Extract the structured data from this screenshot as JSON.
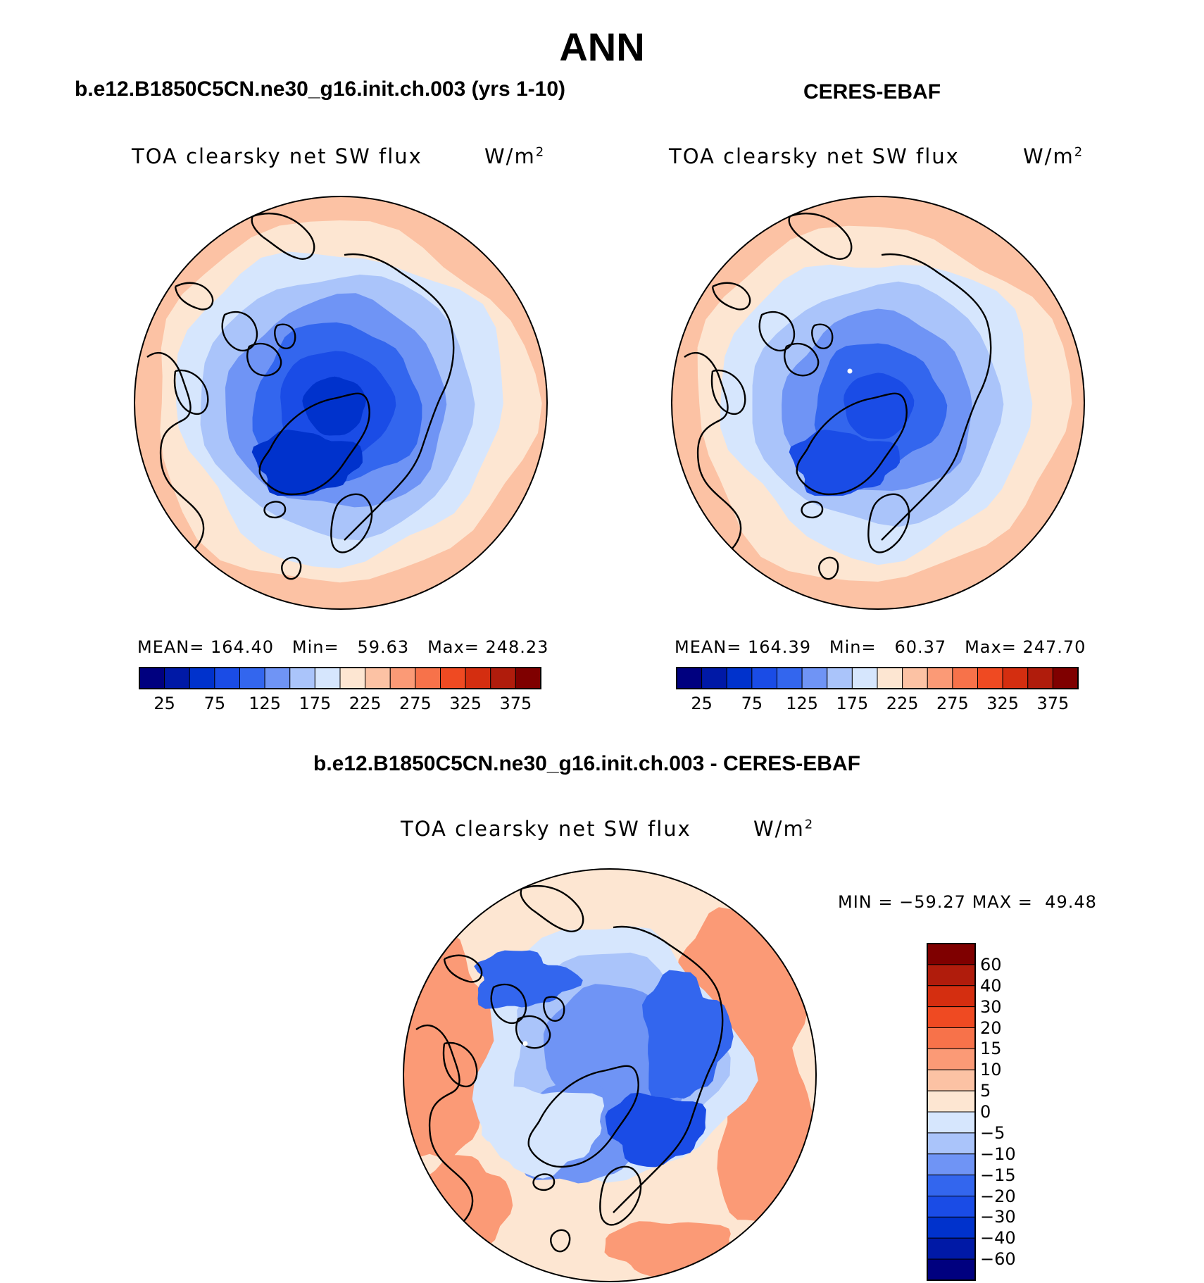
{
  "figure": {
    "season": "ANN",
    "variable": "TOA clearsky net SW flux",
    "units": "W/m",
    "units_exp": "2"
  },
  "panels": {
    "model": {
      "title": "b.e12.B1850C5CN.ne30_g16.init.ch.003 (yrs 1-10)",
      "mean_label": "MEAN=",
      "mean": "164.40",
      "min_label": "Min=",
      "min": "59.63",
      "max_label": "Max=",
      "max": "248.23"
    },
    "obs": {
      "title": "CERES-EBAF",
      "mean_label": "MEAN=",
      "mean": "164.39",
      "min_label": "Min=",
      "min": "60.37",
      "max_label": "Max=",
      "max": "247.70"
    },
    "diff": {
      "title": "b.e12.B1850C5CN.ne30_g16.init.ch.003 - CERES-EBAF",
      "min_label": "MIN =",
      "min": "−59.27",
      "max_label": "MAX =",
      "max": "49.48"
    }
  },
  "colorbars": {
    "abs": {
      "tick_labels": [
        "25",
        "75",
        "125",
        "175",
        "225",
        "275",
        "325",
        "375"
      ],
      "colors": [
        "#00007f",
        "#0019a6",
        "#0032cc",
        "#1a4ce6",
        "#3366ee",
        "#6f94f5",
        "#aac4fa",
        "#d6e6fd",
        "#fde6d2",
        "#fcc2a4",
        "#fb9a76",
        "#f7724a",
        "#ef4a22",
        "#d42e10",
        "#b01c0c",
        "#7f0000"
      ]
    },
    "diff": {
      "tick_labels": [
        "60",
        "40",
        "30",
        "20",
        "15",
        "10",
        "5",
        "0",
        "−5",
        "−10",
        "−15",
        "−20",
        "−30",
        "−40",
        "−60"
      ],
      "colors": [
        "#7f0000",
        "#b01c0c",
        "#d42e10",
        "#ef4a22",
        "#f7724a",
        "#fb9a76",
        "#fcc2a4",
        "#fde6d2",
        "#d6e6fd",
        "#aac4fa",
        "#6f94f5",
        "#3366ee",
        "#1a4ce6",
        "#0032cc",
        "#0019a6",
        "#00007f"
      ]
    }
  },
  "map_fields": {
    "model": [
      "#fcc2a4",
      "#fde6d2",
      "#d6e6fd",
      "#aac4fa",
      "#6f94f5",
      "#3366ee",
      "#1a4ce6",
      "#0032cc"
    ],
    "obs": [
      "#fcc2a4",
      "#fde6d2",
      "#d6e6fd",
      "#aac4fa",
      "#6f94f5",
      "#3366ee",
      "#1a4ce6"
    ],
    "diff": [
      "#fb9a76",
      "#fde6d2",
      "#d6e6fd",
      "#aac4fa",
      "#6f94f5",
      "#3366ee",
      "#1a4ce6"
    ]
  }
}
